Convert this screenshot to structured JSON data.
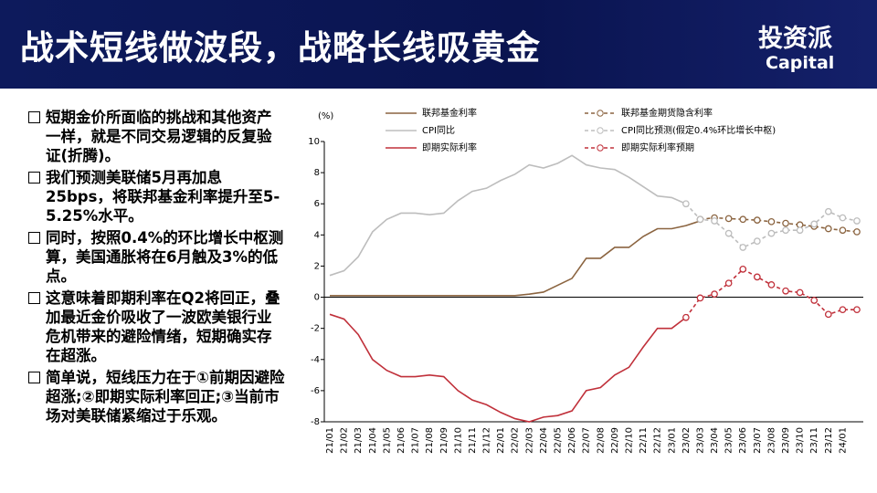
{
  "header": {
    "title": "战术短线做波段，战略长线吸黄金",
    "logo": "投资派",
    "logo_sub": "Capital"
  },
  "bullets": [
    "短期金价所面临的挑战和其他资产一样，就是不同交易逻辑的反复验证(折腾)。",
    "我们预测美联储5月再加息25bps，将联邦基金利率提升至5-5.25%水平。",
    "同时，按照0.4%的环比增长中枢测算，美国通胀将在6月触及3%的低点。",
    "这意味着即期利率在Q2将回正，叠加最近金价吸收了一波欧美银行业危机带来的避险情绪，短期确实存在超涨。",
    "简单说，短线压力在于①前期因避险超涨;②即期实际利率回正;③当前市场对美联储紧缩过于乐观。"
  ],
  "chart_data": {
    "type": "line",
    "y_label": "(%)",
    "categories": [
      "21/01",
      "21/02",
      "21/03",
      "21/04",
      "21/05",
      "21/06",
      "21/07",
      "21/08",
      "21/09",
      "21/10",
      "21/11",
      "21/12",
      "22/01",
      "22/02",
      "22/03",
      "22/04",
      "22/05",
      "22/06",
      "22/07",
      "22/08",
      "22/09",
      "22/10",
      "22/11",
      "22/12",
      "23/01",
      "23/02",
      "23/03",
      "23/04",
      "23/05",
      "23/06",
      "23/07",
      "23/08",
      "23/09",
      "23/10",
      "23/11",
      "23/12",
      "24/01",
      null
    ],
    "series": [
      {
        "name": "联邦基金利率",
        "color": "#8b6440",
        "dashed": false,
        "marker": false,
        "values": [
          0.1,
          0.1,
          0.1,
          0.1,
          0.1,
          0.1,
          0.1,
          0.1,
          0.1,
          0.1,
          0.1,
          0.1,
          0.1,
          0.1,
          0.2,
          0.33,
          0.77,
          1.21,
          2.5,
          2.5,
          3.2,
          3.2,
          3.9,
          4.4,
          4.4,
          4.6,
          4.9,
          null,
          null,
          null,
          null,
          null,
          null,
          null,
          null,
          null,
          null,
          null
        ]
      },
      {
        "name": "联邦基金期货隐含利率",
        "color": "#8b6440",
        "dashed": true,
        "marker": true,
        "values": [
          null,
          null,
          null,
          null,
          null,
          null,
          null,
          null,
          null,
          null,
          null,
          null,
          null,
          null,
          null,
          null,
          null,
          null,
          null,
          null,
          null,
          null,
          null,
          null,
          null,
          null,
          5.0,
          5.1,
          5.05,
          5.0,
          4.95,
          4.85,
          4.75,
          4.65,
          4.55,
          4.4,
          4.3,
          4.2
        ]
      },
      {
        "name": "CPI同比",
        "color": "#bdbdbd",
        "dashed": false,
        "marker": false,
        "values": [
          1.4,
          1.7,
          2.6,
          4.2,
          5.0,
          5.4,
          5.4,
          5.3,
          5.4,
          6.2,
          6.8,
          7.0,
          7.5,
          7.9,
          8.5,
          8.3,
          8.6,
          9.1,
          8.5,
          8.3,
          8.2,
          7.7,
          7.1,
          6.5,
          6.4,
          6.0,
          null,
          null,
          null,
          null,
          null,
          null,
          null,
          null,
          null,
          null,
          null,
          null
        ]
      },
      {
        "name": "CPI同比预测(假定0.4%环比增长中枢)",
        "color": "#bdbdbd",
        "dashed": true,
        "marker": true,
        "values": [
          null,
          null,
          null,
          null,
          null,
          null,
          null,
          null,
          null,
          null,
          null,
          null,
          null,
          null,
          null,
          null,
          null,
          null,
          null,
          null,
          null,
          null,
          null,
          null,
          null,
          6.0,
          5.0,
          4.9,
          4.1,
          3.2,
          3.6,
          4.1,
          4.3,
          4.3,
          4.7,
          5.5,
          5.1,
          4.9
        ]
      },
      {
        "name": "即期实际利率",
        "color": "#c0303a",
        "dashed": false,
        "marker": false,
        "values": [
          -1.1,
          -1.4,
          -2.4,
          -4.0,
          -4.7,
          -5.1,
          -5.1,
          -5.0,
          -5.1,
          -6.0,
          -6.6,
          -6.9,
          -7.4,
          -7.8,
          -8.0,
          -7.7,
          -7.6,
          -7.3,
          -6.0,
          -5.8,
          -5.0,
          -4.5,
          -3.2,
          -2.0,
          -2.0,
          -1.3,
          null,
          null,
          null,
          null,
          null,
          null,
          null,
          null,
          null,
          null,
          null,
          null
        ]
      },
      {
        "name": "即期实际利率预期",
        "color": "#c0303a",
        "dashed": true,
        "marker": true,
        "values": [
          null,
          null,
          null,
          null,
          null,
          null,
          null,
          null,
          null,
          null,
          null,
          null,
          null,
          null,
          null,
          null,
          null,
          null,
          null,
          null,
          null,
          null,
          null,
          null,
          null,
          -1.3,
          -0.05,
          0.2,
          0.9,
          1.8,
          1.3,
          0.8,
          0.4,
          0.3,
          -0.2,
          -1.1,
          -0.8,
          -0.8
        ]
      }
    ],
    "ylim": [
      -8,
      10
    ],
    "yticks": [
      -8,
      -6,
      -4,
      -2,
      0,
      2,
      4,
      6,
      8,
      10
    ]
  }
}
